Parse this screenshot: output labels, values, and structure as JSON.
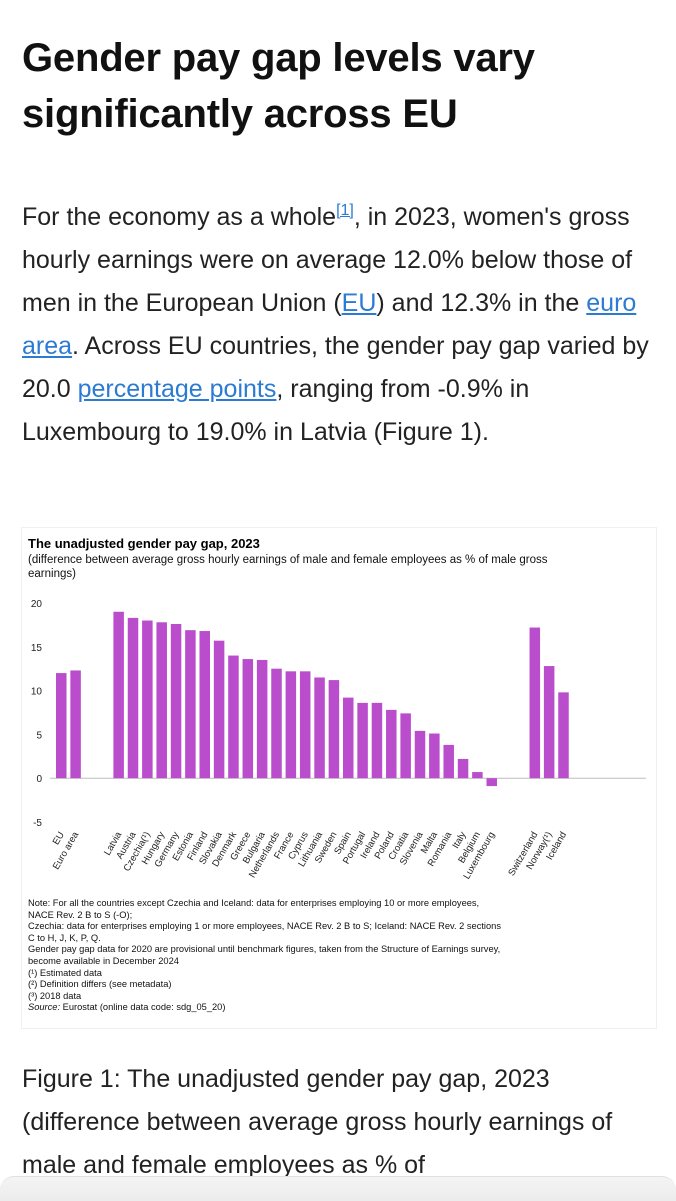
{
  "article": {
    "heading": "Gender pay gap levels vary significantly across EU",
    "intro": {
      "p1": "For the economy as a whole",
      "footnote_ref": "[1]",
      "p2": ", in 2023, women's gross hourly earnings were on average 12.0% below those of men in the European Union (",
      "link_eu": "EU",
      "p3": ") and 12.3% in the ",
      "link_euro_area": "euro area",
      "p4": ". Across EU countries, the gender pay gap varied by 20.0 ",
      "link_pp": "percentage points",
      "p5": ", ranging from -0.9% in Luxembourg to 19.0% in Latvia (Figure 1)."
    },
    "caption": "Figure 1: The unadjusted gender pay gap, 2023 (difference between average gross hourly earnings of male and female employees as % of"
  },
  "chart_data": {
    "type": "bar",
    "title": "The unadjusted gender pay gap, 2023",
    "subtitle": "(difference between average gross hourly earnings of male and female employees as % of male gross earnings)",
    "ylim": [
      -5,
      20
    ],
    "yticks": [
      "20",
      "15",
      "10",
      "5",
      "0",
      "-5"
    ],
    "bar_color": "#b94dcc",
    "groups": [
      {
        "categories": [
          "EU",
          "Euro area"
        ],
        "values": [
          12.0,
          12.3
        ]
      },
      {
        "categories": [
          "Latvia",
          "Austria",
          "Czechia(¹)",
          "Hungary",
          "Germany",
          "Estonia",
          "Finland",
          "Slovakia",
          "Denmark",
          "Greece",
          "Bulgaria",
          "Netherlands",
          "France",
          "Cyprus",
          "Lithuania",
          "Sweden",
          "Spain",
          "Portugal",
          "Ireland",
          "Poland",
          "Croatia",
          "Slovenia",
          "Malta",
          "Romania",
          "Italy",
          "Belgium",
          "Luxembourg"
        ],
        "values": [
          19.0,
          18.3,
          18.0,
          17.8,
          17.6,
          16.9,
          16.8,
          15.7,
          14.0,
          13.6,
          13.5,
          12.5,
          12.2,
          12.2,
          11.5,
          11.2,
          9.2,
          8.6,
          8.6,
          7.8,
          7.4,
          5.4,
          5.1,
          3.8,
          2.2,
          0.7,
          -0.9
        ]
      },
      {
        "categories": [
          "Switzerland",
          "Norway(¹)",
          "Iceland"
        ],
        "values": [
          17.2,
          12.8,
          9.8
        ]
      }
    ]
  },
  "notes": {
    "n1": "Note: For all the countries except Czechia and Iceland: data for enterprises employing 10 or more employees,",
    "n2": "NACE Rev. 2 B to S (-O);",
    "n3": "Czechia: data for enterprises employing 1 or more employees, NACE Rev. 2 B to S; Iceland: NACE Rev. 2 sections",
    "n4": "C to H, J, K, P, Q.",
    "n5": "Gender pay gap data for 2020 are provisional until benchmark figures, taken from the Structure of Earnings survey,",
    "n6": "become available in December 2024",
    "f1": "(¹) Estimated data",
    "f2": "(²) Definition differs (see metadata)",
    "f3": "(³) 2018 data",
    "source_label": "Source:",
    "source_text": " Eurostat (online data code: sdg_05_20)"
  }
}
